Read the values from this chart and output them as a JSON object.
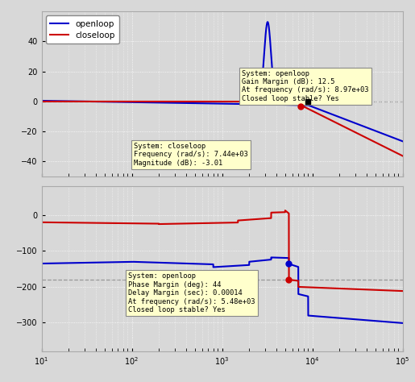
{
  "openloop_color": "#0000cc",
  "closeloop_color": "#cc0000",
  "background_color": "#d8d8d8",
  "annotation_bg": "#ffffcc",
  "gain_margin_annotation": "System: openloop\nGain Margin (dB): 12.5\nAt frequency (rad/s): 8.97e+03\nClosed loop stable? Yes",
  "closeloop_annotation": "System: closeloop\nFrequency (rad/s): 7.44e+03\nMagnitude (dB): -3.01",
  "phase_margin_annotation": "System: openloop\nPhase Margin (deg): 44\nDelay Margin (sec): 0.00014\nAt frequency (rad/s): 5.48e+03\nClosed loop stable? Yes",
  "mag_ylim": [
    -50,
    60
  ],
  "mag_yticks": [
    -40,
    -20,
    0,
    20,
    40
  ],
  "phase_ylim": [
    -380,
    80
  ],
  "phase_yticks": [
    -300,
    -200,
    -100,
    0
  ],
  "freq_min": 10,
  "freq_max": 100000,
  "figsize": [
    5.15,
    4.74
  ],
  "dpi": 100
}
